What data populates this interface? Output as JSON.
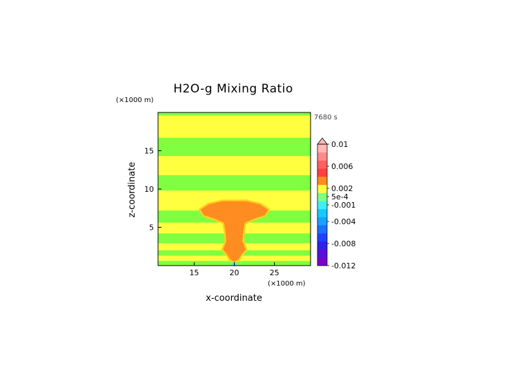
{
  "chart_data": {
    "type": "heatmap",
    "title": "H2O-g Mixing Ratio",
    "xlabel": "x-coordinate",
    "ylabel": "z-coordinate",
    "x_unit": "(×1000 m)",
    "y_unit": "(×1000 m)",
    "time_label": "7680 s",
    "xlim": [
      10.5,
      29.5
    ],
    "ylim": [
      0,
      20
    ],
    "x_ticks": [
      "15",
      "20",
      "25"
    ],
    "x_tick_values": [
      15,
      20,
      25
    ],
    "y_ticks": [
      "5",
      "10",
      "15"
    ],
    "y_tick_values": [
      5,
      10,
      15
    ],
    "colorbar_labels": [
      "0.01",
      "0.006",
      "0.002",
      "5e-4",
      "-0.001",
      "-0.004",
      "-0.008",
      "-0.012"
    ],
    "colorbar_label_values": [
      0.01,
      0.006,
      0.002,
      0.0005,
      -0.001,
      -0.004,
      -0.008,
      -0.012
    ],
    "colorbar_colors": [
      "#7b00c8",
      "#5a10d8",
      "#3020e8",
      "#2040ff",
      "#1a70ff",
      "#1aa0ff",
      "#18c8ff",
      "#40f0f0",
      "#80ff80",
      "#ffff40",
      "#ff8c20",
      "#ff4040",
      "#ff6060",
      "#ff8a8a",
      "#ffb8b8"
    ],
    "field_colors": {
      "negative": "#80ff40",
      "neutral": "#ffff40",
      "positive": "#ff8c20",
      "edge": "#ffd020",
      "minimum": "#40f0f0"
    },
    "regions": [
      {
        "level": "positive",
        "points": [
          [
            15.8,
            7.3
          ],
          [
            16.8,
            8.0
          ],
          [
            18.5,
            8.4
          ],
          [
            21.5,
            8.4
          ],
          [
            23.2,
            8.0
          ],
          [
            24.2,
            7.3
          ],
          [
            23.8,
            6.6
          ],
          [
            22.4,
            6.1
          ],
          [
            21.3,
            5.6
          ],
          [
            21.1,
            4.5
          ],
          [
            21.0,
            3.2
          ],
          [
            21.4,
            2.1
          ],
          [
            20.9,
            1.5
          ],
          [
            20.5,
            0.8
          ],
          [
            20.0,
            0.5
          ],
          [
            19.5,
            0.8
          ],
          [
            19.1,
            1.5
          ],
          [
            18.6,
            2.1
          ],
          [
            19.0,
            3.2
          ],
          [
            18.9,
            4.5
          ],
          [
            18.7,
            5.6
          ],
          [
            17.6,
            6.1
          ],
          [
            16.2,
            6.6
          ]
        ]
      }
    ],
    "neutral_bands": [
      {
        "points": [
          [
            10.5,
            0.6
          ],
          [
            29.5,
            0.6
          ],
          [
            29.5,
            1.3
          ],
          [
            10.5,
            1.3
          ]
        ]
      },
      {
        "points": [
          [
            10.5,
            2.0
          ],
          [
            29.5,
            2.0
          ],
          [
            29.5,
            2.9
          ],
          [
            10.5,
            2.9
          ]
        ]
      },
      {
        "points": [
          [
            10.5,
            4.2
          ],
          [
            29.5,
            4.2
          ],
          [
            29.5,
            5.6
          ],
          [
            10.5,
            5.6
          ]
        ]
      },
      {
        "points": [
          [
            10.5,
            7.2
          ],
          [
            29.5,
            7.2
          ],
          [
            29.5,
            9.8
          ],
          [
            10.5,
            9.8
          ]
        ]
      },
      {
        "points": [
          [
            10.5,
            11.8
          ],
          [
            29.5,
            11.8
          ],
          [
            29.5,
            14.3
          ],
          [
            10.5,
            14.3
          ]
        ]
      },
      {
        "points": [
          [
            10.5,
            16.7
          ],
          [
            29.5,
            16.7
          ],
          [
            29.5,
            19.6
          ],
          [
            10.5,
            19.6
          ]
        ]
      }
    ]
  }
}
